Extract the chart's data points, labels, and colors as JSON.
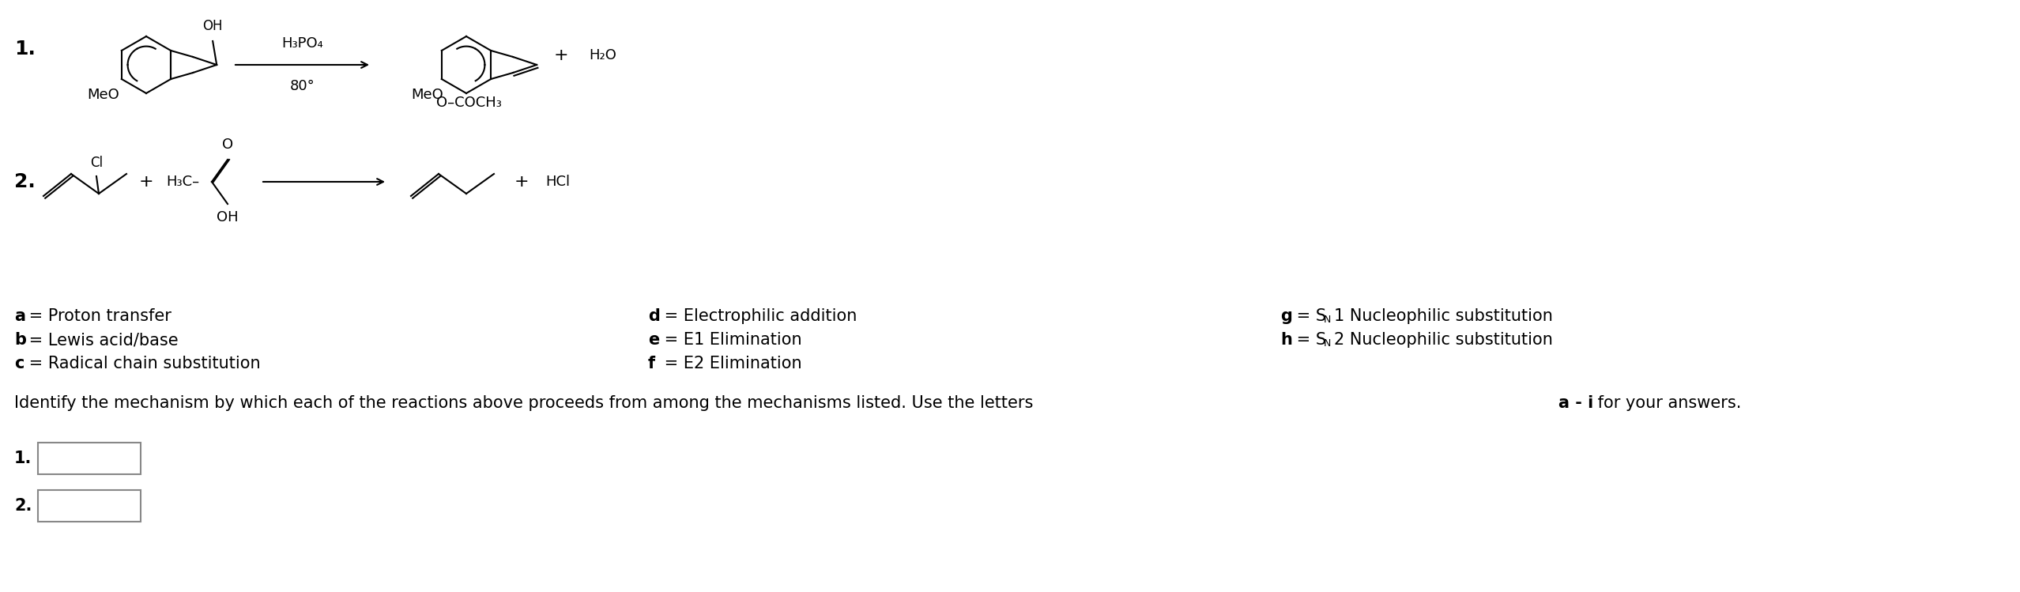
{
  "bg_color": "#ffffff",
  "text_fontsize": 15,
  "small_fontsize": 13,
  "rxn1_reagent": "H₃PO₄",
  "rxn1_condition": "80°",
  "rxn1_meo_reactant": "MeO",
  "rxn1_meo_product": "MeO",
  "rxn1_h2o": "+ H₂O",
  "rxn1_ococh3": "O–COCH₃",
  "rxn2_cl": "Cl",
  "rxn2_h3c": "H₃C–",
  "rxn2_o": "O",
  "rxn2_oh": "OH",
  "rxn2_hcl": "HCl",
  "col1": [
    [
      "a",
      " = Proton transfer"
    ],
    [
      "b",
      " = Lewis acid/base"
    ],
    [
      "c",
      " = Radical chain substitution"
    ]
  ],
  "col2": [
    [
      "d",
      " = Electrophilic addition"
    ],
    [
      "e",
      " = E1 Elimination"
    ],
    [
      "f",
      " = E2 Elimination"
    ]
  ],
  "col3_g": [
    "g",
    " = S",
    "N",
    "1 Nucleophilic substitution"
  ],
  "col3_h": [
    "h",
    " = S",
    "N",
    "2 Nucleophilic substitution"
  ],
  "identify_pre": "Identify the mechanism by which each of the reactions above proceeds from among the mechanisms listed. Use the letters ",
  "identify_bold": "a - i",
  "identify_post": " for your answers.",
  "num1": "1.",
  "num2": "2."
}
